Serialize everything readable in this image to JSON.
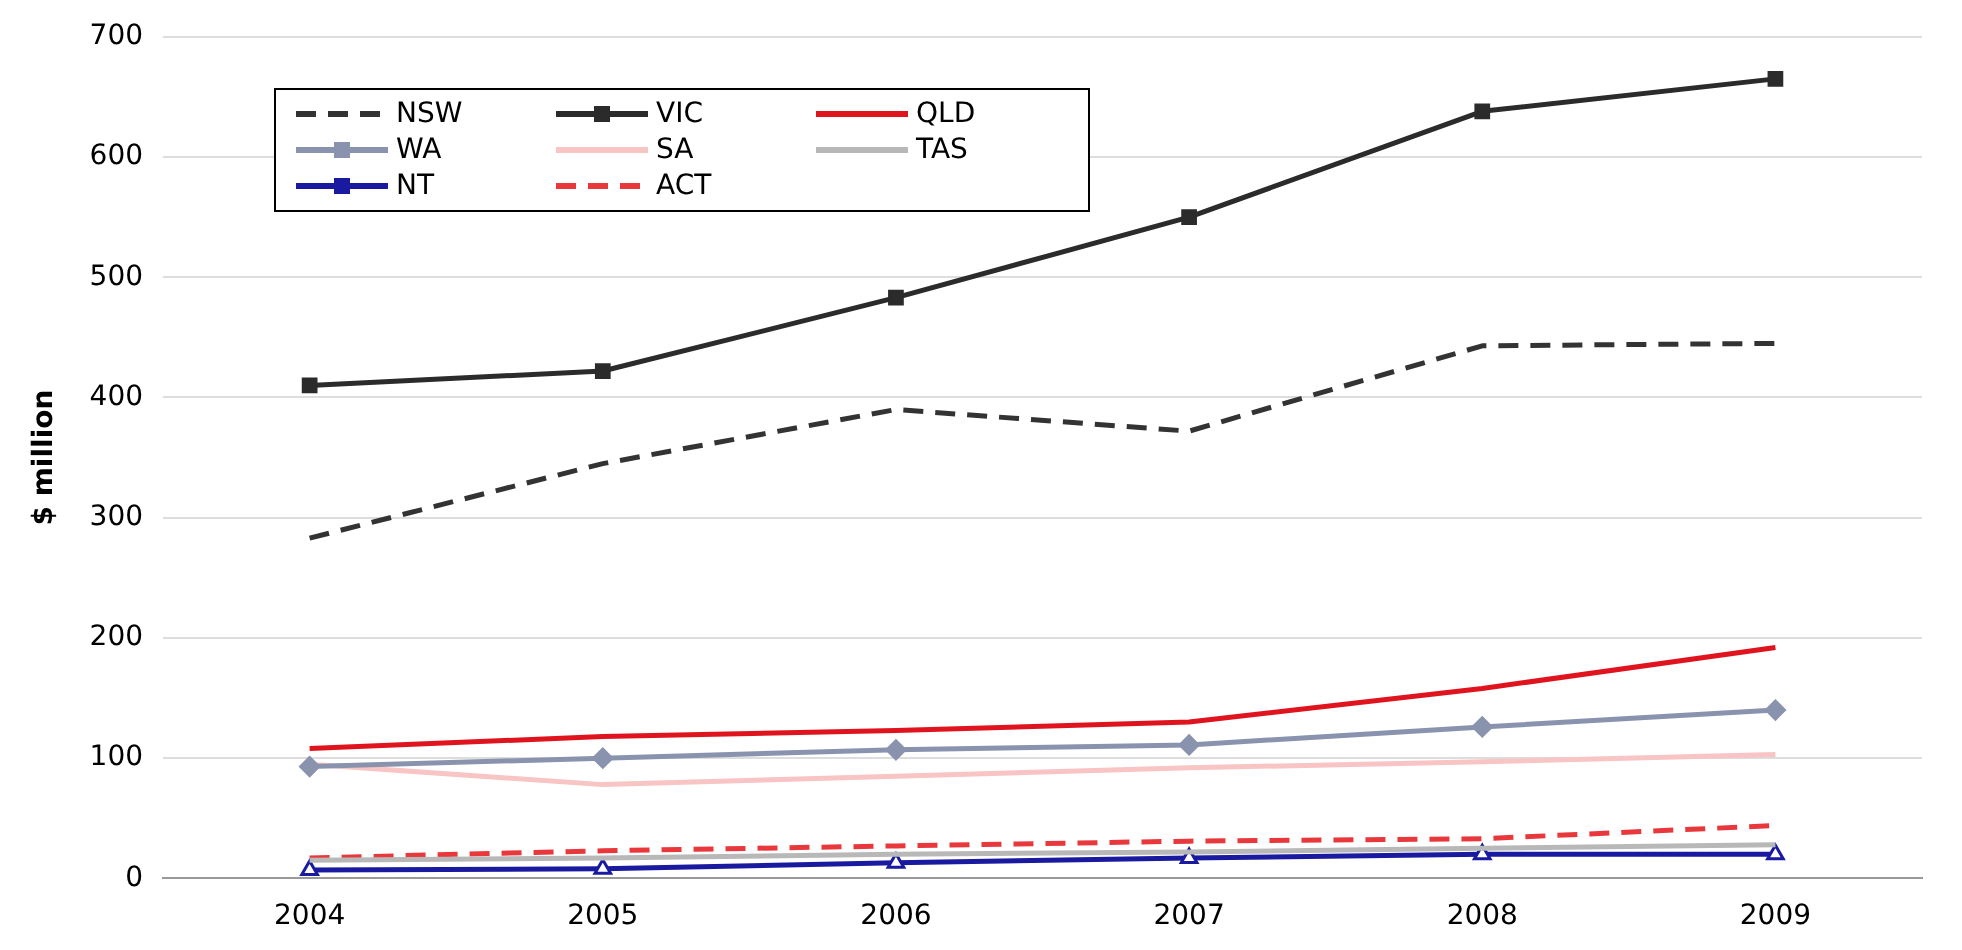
{
  "chart_data": {
    "type": "line",
    "ylabel": "$ million",
    "categories": [
      "2004",
      "2005",
      "2006",
      "2007",
      "2008",
      "2009"
    ],
    "ylim": [
      0,
      700
    ],
    "yticks": [
      0,
      100,
      200,
      300,
      400,
      500,
      600,
      700
    ],
    "grid": "y",
    "legend": "top left",
    "series": [
      {
        "name": "NSW",
        "color": "#333333",
        "line_style": "dashed",
        "marker": "none",
        "values": [
          283,
          345,
          390,
          372,
          443,
          445
        ]
      },
      {
        "name": "VIC",
        "color": "#2b2b2b",
        "line_style": "solid",
        "marker": "square",
        "values": [
          410,
          422,
          483,
          550,
          638,
          665
        ]
      },
      {
        "name": "QLD",
        "color": "#e0141e",
        "line_style": "solid",
        "marker": "none",
        "values": [
          108,
          118,
          123,
          130,
          158,
          192
        ]
      },
      {
        "name": "WA",
        "color": "#8a93ae",
        "line_style": "solid",
        "marker": "diamond",
        "values": [
          93,
          100,
          107,
          111,
          126,
          140
        ]
      },
      {
        "name": "SA",
        "color": "#f8c4c4",
        "line_style": "solid",
        "marker": "none",
        "values": [
          95,
          78,
          85,
          92,
          97,
          103
        ]
      },
      {
        "name": "TAS",
        "color": "#b8b8b8",
        "line_style": "solid",
        "marker": "none",
        "values": [
          15,
          17,
          20,
          22,
          25,
          28
        ]
      },
      {
        "name": "NT",
        "color": "#1a1aa0",
        "line_style": "solid",
        "marker": "triangle",
        "values": [
          7,
          8,
          13,
          17,
          20,
          20
        ]
      },
      {
        "name": "ACT",
        "color": "#e8383c",
        "line_style": "dashed",
        "marker": "none",
        "values": [
          17,
          23,
          27,
          31,
          33,
          44
        ]
      }
    ]
  }
}
